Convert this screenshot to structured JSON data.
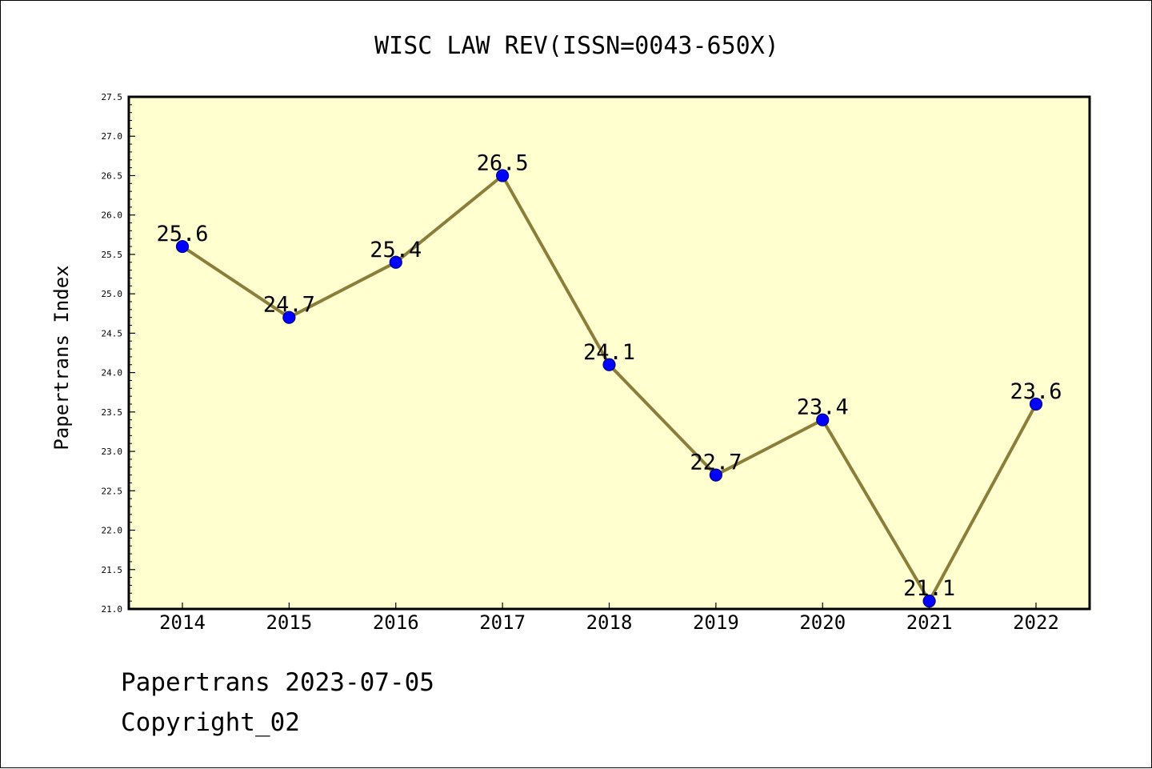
{
  "chart_data": {
    "type": "line",
    "title": "WISC LAW REV(ISSN=0043-650X)",
    "xlabel": "",
    "ylabel": "Papertrans Index",
    "categories": [
      "2014",
      "2015",
      "2016",
      "2017",
      "2018",
      "2019",
      "2020",
      "2021",
      "2022"
    ],
    "values": [
      25.6,
      24.7,
      25.4,
      26.5,
      24.1,
      22.7,
      23.4,
      21.1,
      23.6
    ],
    "data_labels": [
      "25.6",
      "24.7",
      "25.4",
      "26.5",
      "24.1",
      "22.7",
      "23.4",
      "21.1",
      "23.6"
    ],
    "ylim": [
      21.0,
      27.5
    ],
    "yticks": [
      "21.0",
      "21.5",
      "22.0",
      "22.5",
      "23.0",
      "23.5",
      "24.0",
      "24.5",
      "25.0",
      "25.5",
      "26.0",
      "26.5",
      "27.0",
      "27.5"
    ],
    "grid": false,
    "legend": "none",
    "colors": {
      "plot_background": "#ffffd0",
      "line": "#8b7d3a",
      "marker_fill": "#0000ff",
      "marker_edge": "#000080"
    }
  },
  "footer": {
    "line1": "Papertrans 2023-07-05",
    "line2": "Copyright_02"
  }
}
